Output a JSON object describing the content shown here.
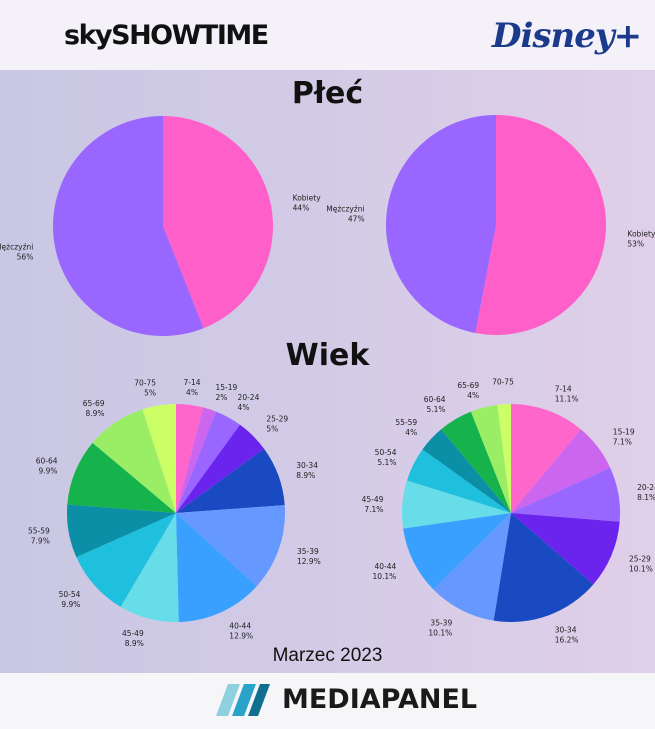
{
  "header": {
    "logo_left": "skySHOWTIME",
    "logo_right": "Disney+"
  },
  "sections": {
    "gender_title": "Płeć",
    "age_title": "Wiek"
  },
  "footnote": "Marzec 2023",
  "footer": {
    "logo": "MEDIAPANEL"
  },
  "colors": {
    "female": "#ff5fc8",
    "male": "#9966ff",
    "age": [
      "#ff66cc",
      "#cc66ee",
      "#9966ff",
      "#6a24ee",
      "#1a4ac2",
      "#6699ff",
      "#3aa0ff",
      "#66dde8",
      "#1fc0de",
      "#0b8fa6",
      "#16b24c",
      "#99ee66",
      "#ccff66"
    ]
  },
  "chart_data": [
    {
      "type": "pie",
      "platform": "SkyShowtime",
      "group": "Płeć",
      "labels": [
        "Kobiety",
        "Mężczyźni"
      ],
      "values": [
        44,
        56
      ],
      "value_labels": [
        "44%",
        "56%"
      ]
    },
    {
      "type": "pie",
      "platform": "Disney+",
      "group": "Płeć",
      "labels": [
        "Kobiety",
        "Mężczyźni"
      ],
      "values": [
        53,
        47
      ],
      "value_labels": [
        "53%",
        "47%"
      ]
    },
    {
      "type": "pie",
      "platform": "SkyShowtime",
      "group": "Wiek",
      "labels": [
        "7-14",
        "15-19",
        "20-24",
        "25-29",
        "30-34",
        "35-39",
        "40-44",
        "45-49",
        "50-54",
        "55-59",
        "60-64",
        "65-69",
        "70-75"
      ],
      "values": [
        4,
        2,
        4,
        5,
        8.9,
        12.9,
        12.9,
        8.9,
        9.9,
        7.9,
        9.9,
        8.9,
        5
      ],
      "value_labels": [
        "4%",
        "2%",
        "4%",
        "5%",
        "8.9%",
        "12.9%",
        "12.9%",
        "8.9%",
        "9.9%",
        "7.9%",
        "9.9%",
        "8.9%",
        "5%"
      ]
    },
    {
      "type": "pie",
      "platform": "Disney+",
      "group": "Wiek",
      "labels": [
        "7-14",
        "15-19",
        "20-24",
        "25-29",
        "30-34",
        "35-39",
        "40-44",
        "45-49",
        "50-54",
        "55-59",
        "60-64",
        "65-69",
        "70-75"
      ],
      "values": [
        11.1,
        7.1,
        8.1,
        10.1,
        16.2,
        10.1,
        10.1,
        7.1,
        5.1,
        4,
        5.1,
        4,
        2
      ],
      "value_labels": [
        "11.1%",
        "7.1%",
        "8.1%",
        "10.1%",
        "16.2%",
        "10.1%",
        "10.1%",
        "7.1%",
        "5.1%",
        "4%",
        "5.1%",
        "4%",
        ""
      ]
    }
  ]
}
